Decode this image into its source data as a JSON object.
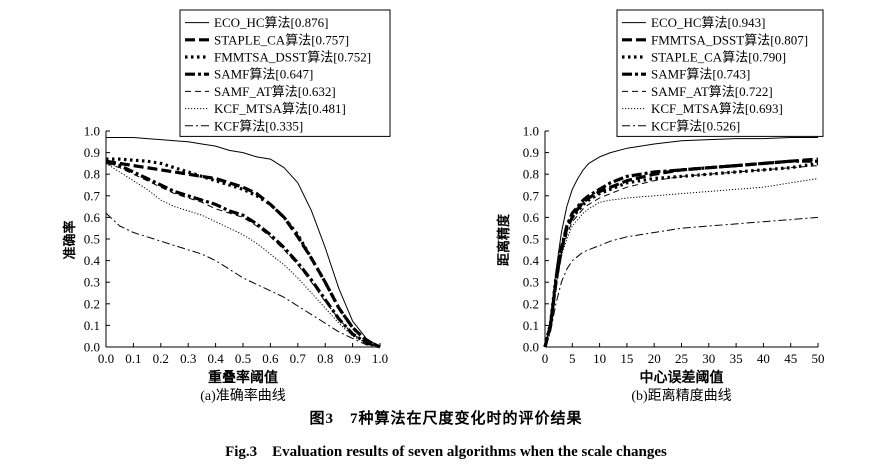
{
  "figure": {
    "caption_cn": "图3　7种算法在尺度变化时的评价结果",
    "caption_en": "Fig.3　Evaluation results of seven algorithms when the scale changes"
  },
  "chart_data": [
    {
      "type": "line",
      "subcaption": "(a)准确率曲线",
      "xlabel": "重叠率阈值",
      "ylabel": "准确率",
      "xlim": [
        0,
        1
      ],
      "ylim": [
        0,
        1
      ],
      "xticks": [
        "0.0",
        "0.1",
        "0.2",
        "0.3",
        "0.4",
        "0.5",
        "0.6",
        "0.7",
        "0.8",
        "0.9",
        "1.0"
      ],
      "yticks": [
        "0.0",
        "0.1",
        "0.2",
        "0.3",
        "0.4",
        "0.5",
        "0.6",
        "0.7",
        "0.8",
        "0.9",
        "1.0"
      ],
      "grid": false,
      "legend_position": "top-right",
      "x": [
        0,
        0.05,
        0.1,
        0.15,
        0.2,
        0.25,
        0.3,
        0.35,
        0.4,
        0.45,
        0.5,
        0.55,
        0.6,
        0.65,
        0.7,
        0.75,
        0.8,
        0.85,
        0.9,
        0.95,
        1.0
      ],
      "series": [
        {
          "name": "ECO_HC算法[0.876]",
          "style": "solid",
          "values": [
            0.97,
            0.97,
            0.97,
            0.965,
            0.96,
            0.955,
            0.95,
            0.94,
            0.93,
            0.91,
            0.9,
            0.88,
            0.87,
            0.83,
            0.76,
            0.63,
            0.46,
            0.27,
            0.12,
            0.04,
            0.0
          ]
        },
        {
          "name": "STAPLE_CA算法[0.757]",
          "style": "dash-thick",
          "values": [
            0.86,
            0.85,
            0.84,
            0.83,
            0.82,
            0.81,
            0.8,
            0.79,
            0.78,
            0.76,
            0.74,
            0.71,
            0.66,
            0.6,
            0.51,
            0.41,
            0.3,
            0.18,
            0.09,
            0.03,
            0.0
          ]
        },
        {
          "name": "FMMTSA_DSST算法[0.752]",
          "style": "dot-thick",
          "values": [
            0.87,
            0.87,
            0.865,
            0.86,
            0.85,
            0.83,
            0.81,
            0.79,
            0.77,
            0.75,
            0.73,
            0.7,
            0.66,
            0.6,
            0.52,
            0.41,
            0.3,
            0.18,
            0.09,
            0.03,
            0.0
          ]
        },
        {
          "name": "SAMF算法[0.647]",
          "style": "dashdot-thick",
          "values": [
            0.86,
            0.84,
            0.81,
            0.78,
            0.75,
            0.72,
            0.7,
            0.68,
            0.66,
            0.63,
            0.61,
            0.57,
            0.52,
            0.46,
            0.39,
            0.31,
            0.22,
            0.13,
            0.06,
            0.02,
            0.0
          ]
        },
        {
          "name": "SAMF_AT算法[0.632]",
          "style": "dash-thin",
          "values": [
            0.85,
            0.83,
            0.8,
            0.77,
            0.74,
            0.71,
            0.69,
            0.67,
            0.64,
            0.62,
            0.6,
            0.56,
            0.51,
            0.45,
            0.38,
            0.3,
            0.21,
            0.13,
            0.06,
            0.02,
            0.0
          ]
        },
        {
          "name": "KCF_MTSA算法[0.481]",
          "style": "dot-thin",
          "values": [
            0.85,
            0.81,
            0.77,
            0.73,
            0.68,
            0.65,
            0.63,
            0.61,
            0.58,
            0.55,
            0.52,
            0.48,
            0.43,
            0.38,
            0.32,
            0.25,
            0.18,
            0.11,
            0.05,
            0.02,
            0.0
          ]
        },
        {
          "name": "KCF算法[0.335]",
          "style": "dashdot-thin",
          "values": [
            0.62,
            0.56,
            0.53,
            0.51,
            0.49,
            0.47,
            0.45,
            0.43,
            0.4,
            0.36,
            0.32,
            0.29,
            0.26,
            0.23,
            0.19,
            0.15,
            0.11,
            0.07,
            0.04,
            0.01,
            0.0
          ]
        }
      ]
    },
    {
      "type": "line",
      "subcaption": "(b)距离精度曲线",
      "xlabel": "中心误差阈值",
      "ylabel": "距离精度",
      "xlim": [
        0,
        50
      ],
      "ylim": [
        0,
        1
      ],
      "xticks": [
        "0",
        "5",
        "10",
        "15",
        "20",
        "25",
        "30",
        "35",
        "40",
        "45",
        "50"
      ],
      "yticks": [
        "0.0",
        "0.1",
        "0.2",
        "0.3",
        "0.4",
        "0.5",
        "0.6",
        "0.7",
        "0.8",
        "0.9",
        "1.0"
      ],
      "grid": false,
      "legend_position": "top-right",
      "x": [
        0,
        1,
        2,
        3,
        4,
        5,
        6,
        7,
        8,
        10,
        12,
        15,
        20,
        25,
        30,
        35,
        40,
        45,
        50
      ],
      "series": [
        {
          "name": "ECO_HC算法[0.943]",
          "style": "solid",
          "values": [
            0.0,
            0.12,
            0.35,
            0.53,
            0.65,
            0.73,
            0.78,
            0.82,
            0.85,
            0.88,
            0.9,
            0.92,
            0.94,
            0.955,
            0.96,
            0.965,
            0.965,
            0.97,
            0.97
          ]
        },
        {
          "name": "FMMTSA_DSST算法[0.807]",
          "style": "dash-thick",
          "values": [
            0.0,
            0.1,
            0.3,
            0.45,
            0.55,
            0.6,
            0.64,
            0.67,
            0.69,
            0.72,
            0.74,
            0.77,
            0.8,
            0.82,
            0.83,
            0.84,
            0.85,
            0.86,
            0.87
          ]
        },
        {
          "name": "STAPLE_CA算法[0.790]",
          "style": "dot-thick",
          "values": [
            0.0,
            0.11,
            0.32,
            0.46,
            0.55,
            0.6,
            0.63,
            0.66,
            0.68,
            0.71,
            0.73,
            0.76,
            0.78,
            0.79,
            0.8,
            0.81,
            0.82,
            0.83,
            0.85
          ]
        },
        {
          "name": "SAMF算法[0.743]",
          "style": "dashdot-thick",
          "values": [
            0.0,
            0.1,
            0.3,
            0.46,
            0.56,
            0.62,
            0.65,
            0.68,
            0.7,
            0.73,
            0.76,
            0.79,
            0.81,
            0.82,
            0.83,
            0.84,
            0.85,
            0.86,
            0.86
          ]
        },
        {
          "name": "SAMF_AT算法[0.722]",
          "style": "dash-thin",
          "values": [
            0.0,
            0.1,
            0.28,
            0.43,
            0.52,
            0.58,
            0.61,
            0.64,
            0.66,
            0.69,
            0.71,
            0.74,
            0.77,
            0.79,
            0.8,
            0.81,
            0.82,
            0.83,
            0.84
          ]
        },
        {
          "name": "KCF_MTSA算法[0.693]",
          "style": "dot-thin",
          "values": [
            0.0,
            0.1,
            0.28,
            0.42,
            0.5,
            0.56,
            0.59,
            0.62,
            0.64,
            0.67,
            0.68,
            0.69,
            0.7,
            0.71,
            0.72,
            0.73,
            0.74,
            0.76,
            0.78
          ]
        },
        {
          "name": "KCF算法[0.526]",
          "style": "dashdot-thin",
          "values": [
            0.0,
            0.07,
            0.2,
            0.3,
            0.36,
            0.4,
            0.42,
            0.44,
            0.45,
            0.47,
            0.49,
            0.51,
            0.53,
            0.55,
            0.56,
            0.57,
            0.58,
            0.59,
            0.6
          ]
        }
      ]
    }
  ]
}
